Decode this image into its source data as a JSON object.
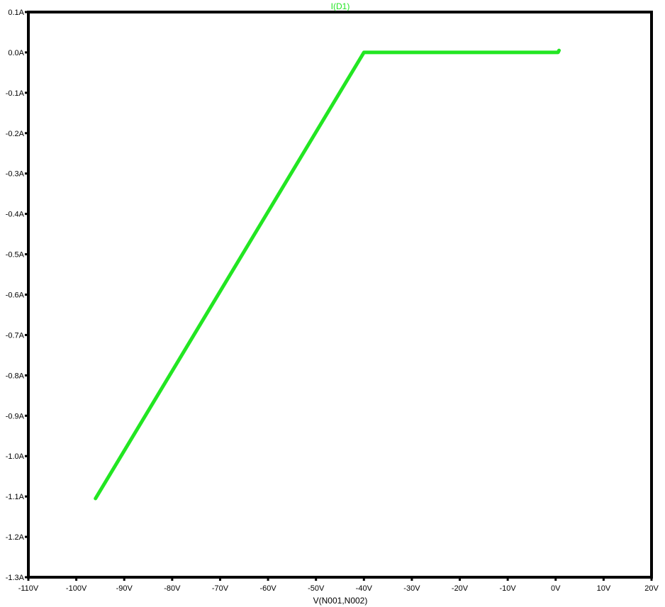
{
  "chart_data": {
    "type": "line",
    "title": "",
    "xlabel": "V(N001,N002)",
    "ylabel": "",
    "xlim": [
      -110,
      20
    ],
    "ylim": [
      -1.3,
      0.1
    ],
    "x_ticks": [
      "-110V",
      "-100V",
      "-90V",
      "-80V",
      "-70V",
      "-60V",
      "-50V",
      "-40V",
      "-30V",
      "-20V",
      "-10V",
      "0V",
      "10V",
      "20V"
    ],
    "y_ticks": [
      "0.1A",
      "0.0A",
      "-0.1A",
      "-0.2A",
      "-0.3A",
      "-0.4A",
      "-0.5A",
      "-0.6A",
      "-0.7A",
      "-0.8A",
      "-0.9A",
      "-1.0A",
      "-1.1A",
      "-1.2A",
      "-1.3A"
    ],
    "grid": false,
    "legend": "top-center",
    "series": [
      {
        "name": "I(D1)",
        "color": "#22e622",
        "x": [
          -96,
          -40,
          0.5,
          0.7
        ],
        "y": [
          -1.105,
          0.0,
          0.0,
          0.005
        ]
      }
    ]
  }
}
